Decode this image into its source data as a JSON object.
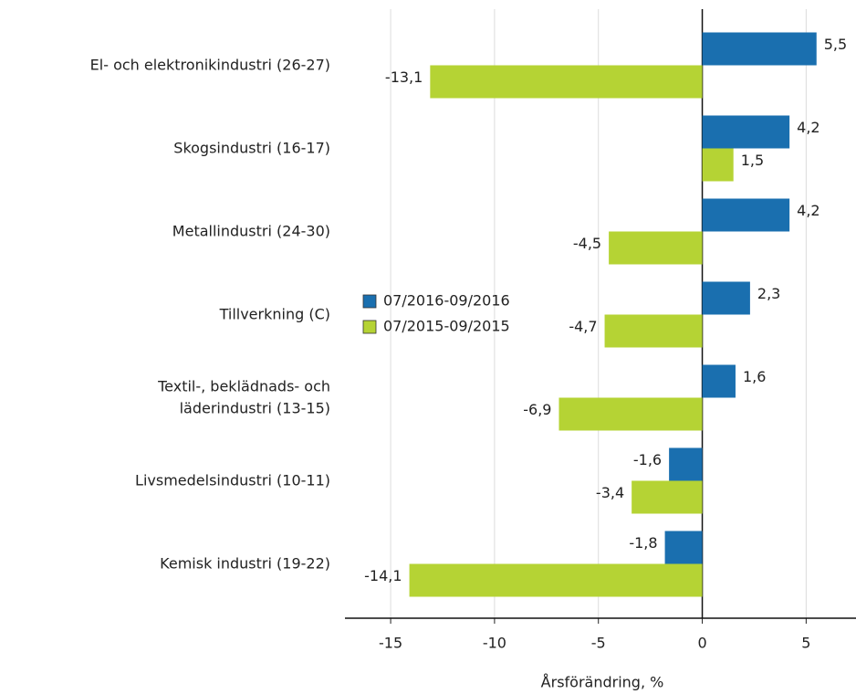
{
  "chart_data": {
    "type": "bar",
    "orientation": "horizontal",
    "categories": [
      "El- och elektronikindustri (26-27)",
      "Skogsindustri (16-17)",
      "Metallindustri (24-30)",
      "Tillverkning (C)",
      "Textil-, beklädnads- och\nläderindustri (13-15)",
      "Livsmedelsindustri (10-11)",
      "Kemisk industri (19-22)"
    ],
    "series": [
      {
        "name": "07/2016-09/2016",
        "color": "#1a6faf",
        "values": [
          5.5,
          4.2,
          4.2,
          2.3,
          1.6,
          -1.6,
          -1.8
        ],
        "value_labels": [
          "5,5",
          "4,2",
          "4,2",
          "2,3",
          "1,6",
          "-1,6",
          "-1,8"
        ]
      },
      {
        "name": "07/2015-09/2015",
        "color": "#b5d334",
        "values": [
          -13.1,
          1.5,
          -4.5,
          -4.7,
          -6.9,
          -3.4,
          -14.1
        ],
        "value_labels": [
          "-13,1",
          "1,5",
          "-4,5",
          "-4,7",
          "-6,9",
          "-3,4",
          "-14,1"
        ]
      }
    ],
    "xlabel": "Årsförändring, %",
    "xlim": [
      -17.2,
      7.4
    ],
    "xticks": [
      -15,
      -10,
      -5,
      0,
      5
    ],
    "grid": true,
    "legend": "center-left"
  }
}
